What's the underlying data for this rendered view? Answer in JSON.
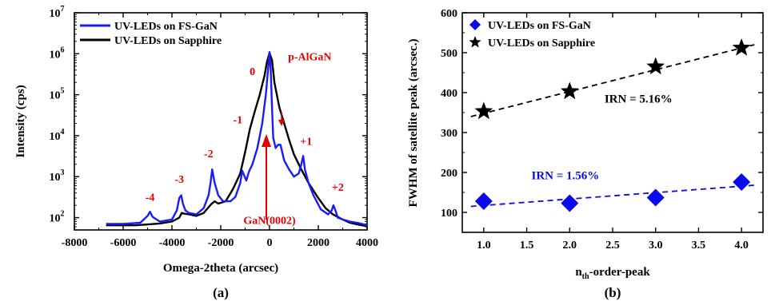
{
  "chart_data": [
    {
      "type": "line",
      "panel_label": "(a)",
      "xlabel": "Omega-2theta (arcsec)",
      "ylabel": "Intensity (cps)",
      "xlim": [
        -8000,
        4000
      ],
      "ylim": [
        50,
        10000000
      ],
      "yscale": "log",
      "x_ticks": [
        -8000,
        -6000,
        -4000,
        -2000,
        0,
        2000,
        4000
      ],
      "y_ticks": [
        {
          "value": 100,
          "mant": "10",
          "exp": "2"
        },
        {
          "value": 1000,
          "mant": "10",
          "exp": "3"
        },
        {
          "value": 10000,
          "mant": "10",
          "exp": "4"
        },
        {
          "value": 100000,
          "mant": "10",
          "exp": "5"
        },
        {
          "value": 1000000,
          "mant": "10",
          "exp": "6"
        },
        {
          "value": 10000000,
          "mant": "10",
          "exp": "7"
        }
      ],
      "legend_position": "top-left",
      "series": [
        {
          "name": "UV-LEDs on FS-GaN",
          "color": "#1a1aff",
          "x": [
            -6700,
            -6000,
            -5300,
            -5000,
            -4900,
            -4800,
            -4500,
            -4000,
            -3800,
            -3700,
            -3620,
            -3550,
            -3450,
            -3300,
            -3000,
            -2700,
            -2500,
            -2420,
            -2350,
            -2250,
            -2100,
            -1900,
            -1600,
            -1400,
            -1200,
            -1120,
            -1050,
            -950,
            -850,
            -700,
            -500,
            -300,
            -150,
            -50,
            0,
            50,
            100,
            150,
            250,
            350,
            450,
            600,
            800,
            1000,
            1200,
            1300,
            1380,
            1450,
            1600,
            1800,
            2100,
            2400,
            2550,
            2620,
            2700,
            2800,
            3000,
            3300,
            3600,
            3800,
            4000
          ],
          "values": [
            70,
            70,
            75,
            110,
            140,
            105,
            80,
            90,
            150,
            300,
            350,
            220,
            150,
            130,
            120,
            170,
            350,
            700,
            1500,
            700,
            350,
            250,
            250,
            320,
            700,
            1400,
            1100,
            800,
            1300,
            2000,
            5000,
            20000,
            100000,
            500000,
            1100000,
            400000,
            50000,
            9000,
            5000,
            6000,
            6000,
            2500,
            1500,
            1000,
            1200,
            2000,
            3200,
            1500,
            700,
            350,
            160,
            120,
            150,
            200,
            150,
            100,
            90,
            80,
            75,
            70,
            65
          ]
        },
        {
          "name": "UV-LEDs on Sapphire",
          "color": "#000000",
          "x": [
            -6700,
            -6000,
            -5500,
            -5000,
            -4500,
            -4000,
            -3700,
            -3600,
            -3500,
            -3300,
            -3000,
            -2700,
            -2400,
            -2250,
            -2100,
            -1800,
            -1500,
            -1200,
            -1000,
            -800,
            -600,
            -400,
            -200,
            -100,
            0,
            100,
            200,
            400,
            600,
            800,
            1000,
            1300,
            1600,
            2000,
            2300,
            2600,
            3000,
            3300,
            3600,
            3800,
            4000
          ],
          "values": [
            65,
            65,
            65,
            68,
            72,
            80,
            100,
            130,
            125,
            120,
            110,
            130,
            210,
            250,
            220,
            250,
            500,
            1200,
            4000,
            15000,
            40000,
            100000,
            300000,
            650000,
            1050000,
            700000,
            200000,
            50000,
            20000,
            8000,
            3500,
            1500,
            700,
            300,
            170,
            120,
            90,
            75,
            68,
            65,
            62
          ]
        }
      ],
      "annotations": [
        {
          "text": "-4",
          "x": -4900,
          "y": 260
        },
        {
          "text": "-3",
          "x": -3700,
          "y": 700
        },
        {
          "text": "-2",
          "x": -2500,
          "y": 3000
        },
        {
          "text": "-1",
          "x": -1300,
          "y": 20000
        },
        {
          "text": "0",
          "x": -700,
          "y": 300000
        },
        {
          "text": "+1",
          "x": 1500,
          "y": 6000
        },
        {
          "text": "+2",
          "x": 2800,
          "y": 450
        },
        {
          "text": "p-AlGaN",
          "x": 1650,
          "y": 700000
        },
        {
          "text": "GaN(0002)",
          "x": 0,
          "y": 70
        }
      ],
      "annotation_color": "#e60000"
    },
    {
      "type": "scatter",
      "panel_label": "(b)",
      "xlabel_main": "n",
      "xlabel_sub": "th",
      "xlabel_rest": "-order-peak",
      "ylabel": "FWHM of satellite peak (arcsec.)",
      "xlim": [
        0.75,
        4.25
      ],
      "ylim": [
        50,
        600
      ],
      "x_ticks": [
        "1.0",
        "1.5",
        "2.0",
        "2.5",
        "3.0",
        "3.5",
        "4.0"
      ],
      "y_ticks": [
        100,
        200,
        300,
        400,
        500,
        600
      ],
      "legend_position": "top-left",
      "series": [
        {
          "name": "UV-LEDs on FS-GaN",
          "color": "#0a0aee",
          "marker": "diamond",
          "x": [
            1,
            2,
            3,
            4
          ],
          "values": [
            128,
            123,
            137,
            176
          ],
          "fit": [
            115,
            168
          ]
        },
        {
          "name": "UV-LEDs on Sapphire",
          "color": "#000000",
          "marker": "star",
          "x": [
            1,
            2,
            3,
            4
          ],
          "values": [
            353,
            403,
            465,
            512
          ],
          "fit": [
            340,
            520
          ]
        }
      ],
      "annotations": [
        {
          "text": "IRN = 5.16%",
          "color": "#000000",
          "x": 2.8,
          "y": 375
        },
        {
          "text": "IRN = 1.56%",
          "color": "#0a0aee",
          "x": 1.95,
          "y": 183
        }
      ]
    }
  ]
}
